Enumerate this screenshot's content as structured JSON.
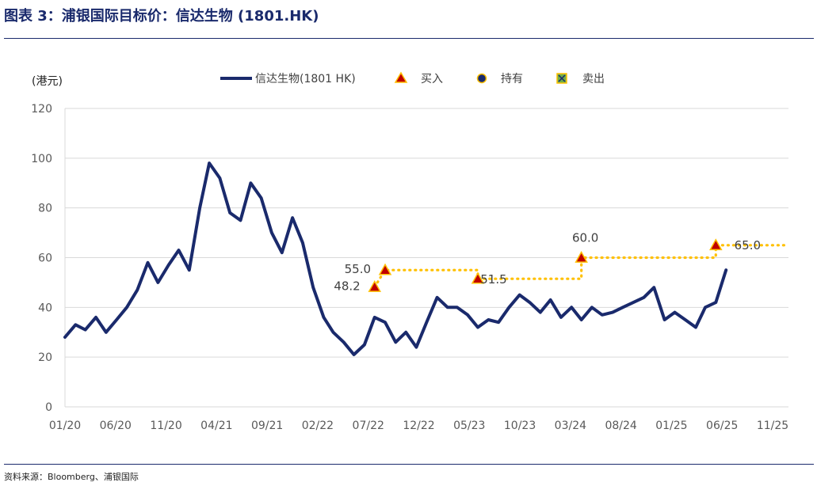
{
  "figure": {
    "title": "图表 3：浦银国际目标价：信达生物 (1801.HK)",
    "source": "资料来源：Bloomberg、浦银国际"
  },
  "chart_data": {
    "type": "line",
    "ylabel": "(港元)",
    "ylim": [
      0,
      120
    ],
    "yticks": [
      0,
      20,
      40,
      60,
      80,
      100,
      120
    ],
    "grid": true,
    "legend_position": "top",
    "x_tick_labels": [
      "01/20",
      "06/20",
      "11/20",
      "04/21",
      "09/21",
      "02/22",
      "07/22",
      "12/22",
      "05/23",
      "10/23",
      "03/24",
      "08/24",
      "01/25",
      "06/25",
      "11/25"
    ],
    "series": [
      {
        "name": "信达生物(1801 HK)",
        "color": "#1a2a6c",
        "x": [
          "2020-01",
          "2020-02",
          "2020-03",
          "2020-04",
          "2020-05",
          "2020-06",
          "2020-07",
          "2020-08",
          "2020-09",
          "2020-10",
          "2020-11",
          "2020-12",
          "2021-01",
          "2021-02",
          "2021-03",
          "2021-04",
          "2021-05",
          "2021-06",
          "2021-07",
          "2021-08",
          "2021-09",
          "2021-10",
          "2021-11",
          "2021-12",
          "2022-01",
          "2022-02",
          "2022-03",
          "2022-04",
          "2022-05",
          "2022-06",
          "2022-07",
          "2022-08",
          "2022-09",
          "2022-10",
          "2022-11",
          "2022-12",
          "2023-01",
          "2023-02",
          "2023-03",
          "2023-04",
          "2023-05",
          "2023-06",
          "2023-07",
          "2023-08",
          "2023-09",
          "2023-10",
          "2023-11",
          "2023-12",
          "2024-01",
          "2024-02",
          "2024-03",
          "2024-04",
          "2024-05",
          "2024-06",
          "2024-07",
          "2024-08",
          "2024-09",
          "2024-10",
          "2024-11",
          "2024-12",
          "2025-01",
          "2025-02",
          "2025-03",
          "2025-04",
          "2025-05"
        ],
        "values": [
          28,
          33,
          31,
          36,
          30,
          35,
          40,
          47,
          58,
          50,
          57,
          63,
          55,
          80,
          98,
          92,
          78,
          75,
          90,
          84,
          70,
          62,
          76,
          66,
          48,
          36,
          30,
          26,
          21,
          25,
          36,
          34,
          26,
          30,
          24,
          34,
          44,
          40,
          40,
          37,
          32,
          35,
          34,
          40,
          45,
          42,
          38,
          43,
          36,
          40,
          35,
          40,
          37,
          38,
          40,
          42,
          44,
          48,
          35,
          38,
          35,
          32,
          40,
          42,
          55
        ],
        "line_width": 4
      }
    ],
    "annotations": {
      "buy": [
        {
          "x": "2022-07",
          "value": 48.2,
          "label": "48.2"
        },
        {
          "x": "2022-08",
          "value": 55.0,
          "label": "55.0"
        },
        {
          "x": "2023-05",
          "value": 51.5,
          "label": "51.5"
        },
        {
          "x": "2024-03",
          "value": 60.0,
          "label": "60.0"
        },
        {
          "x": "2025-04",
          "value": 65.0,
          "label": "65.0"
        }
      ],
      "target_price_line": {
        "color": "#ffc000",
        "points": [
          {
            "x": "2022-07",
            "value": 48.2
          },
          {
            "x": "2022-08",
            "value": 55.0
          },
          {
            "x": "2023-05",
            "value": 55.0
          },
          {
            "x": "2023-05",
            "value": 51.5
          },
          {
            "x": "2024-03",
            "value": 51.5
          },
          {
            "x": "2024-03",
            "value": 60.0
          },
          {
            "x": "2025-04",
            "value": 60.0
          },
          {
            "x": "2025-04",
            "value": 65.0
          },
          {
            "x": "2025-11",
            "value": 65.0
          }
        ]
      }
    },
    "legend": [
      {
        "label": "信达生物(1801 HK)",
        "marker": "line",
        "color": "#1a2a6c"
      },
      {
        "label": "买入",
        "marker": "triangle",
        "color": "#c00000"
      },
      {
        "label": "持有",
        "marker": "circle",
        "color": "#1a2a6c"
      },
      {
        "label": "卖出",
        "marker": "square-x",
        "color": "#70ad47"
      }
    ]
  }
}
